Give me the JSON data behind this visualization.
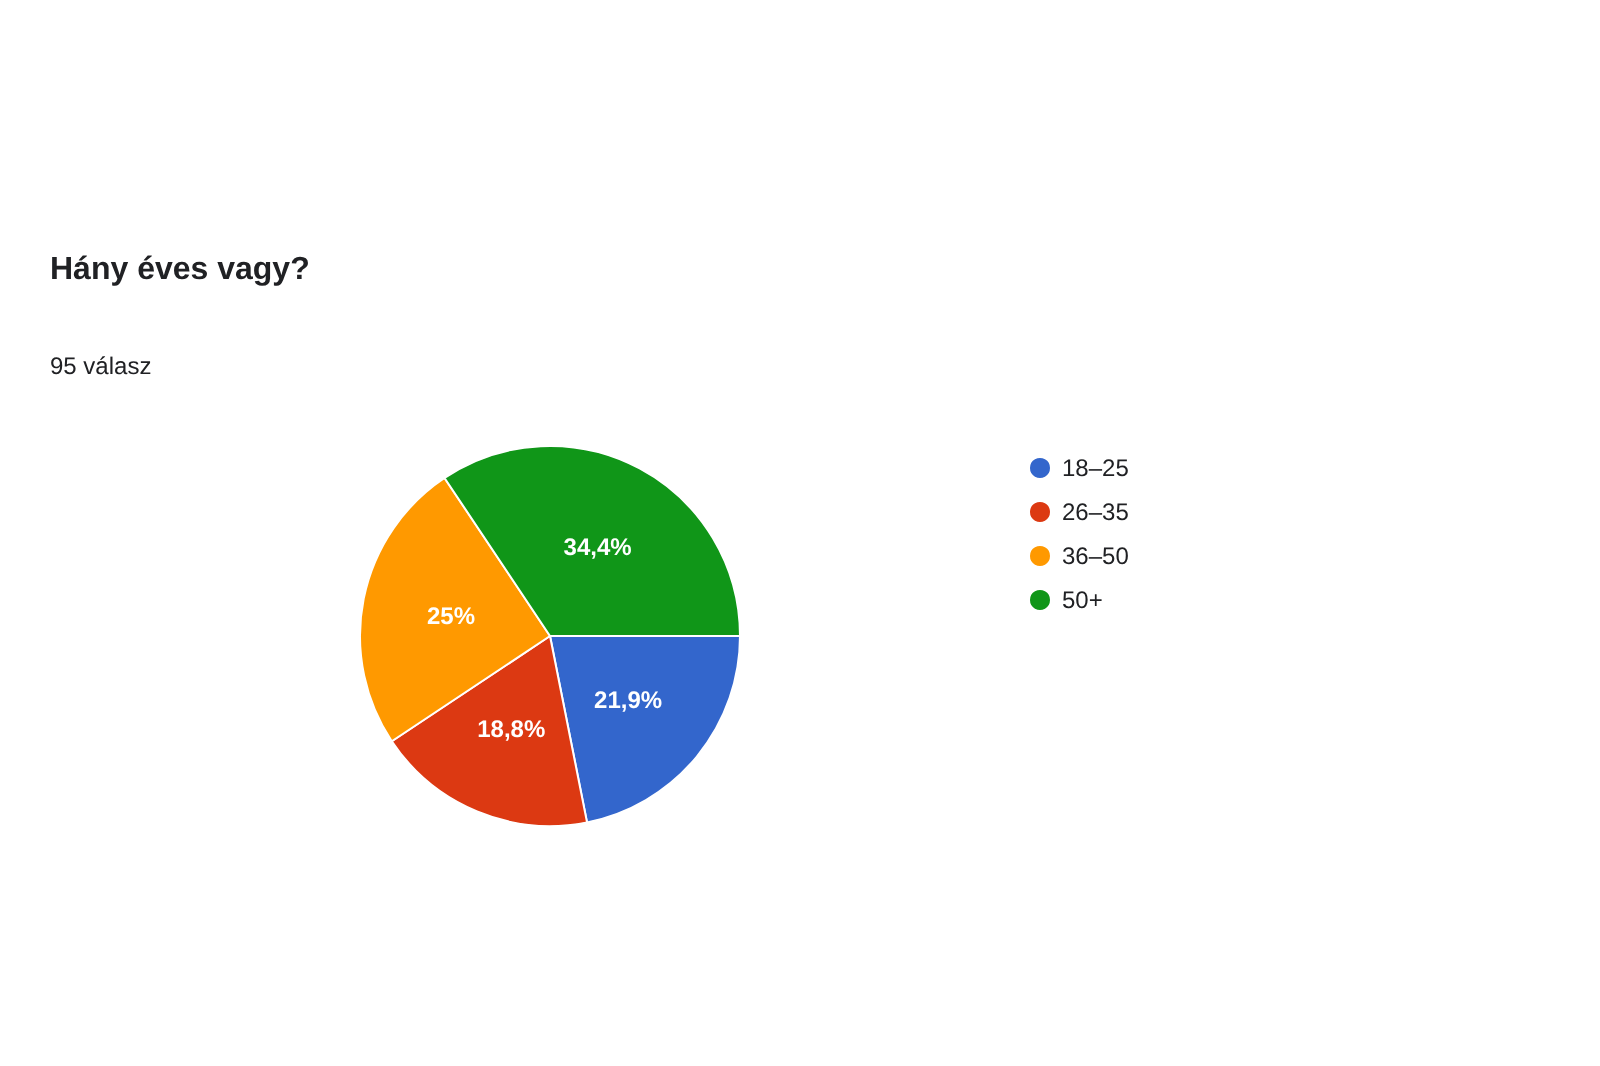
{
  "chart_data": {
    "type": "pie",
    "title": "Hány éves vagy?",
    "subtitle": "95 válasz",
    "categories": [
      "18–25",
      "26–35",
      "36–50",
      "50+"
    ],
    "values": [
      21.9,
      18.8,
      25,
      34.4
    ],
    "value_labels": [
      "21,9%",
      "18,8%",
      "25%",
      "34,4%"
    ],
    "colors": [
      "#3366cc",
      "#dc3912",
      "#ff9900",
      "#109618"
    ],
    "legend": "right"
  }
}
